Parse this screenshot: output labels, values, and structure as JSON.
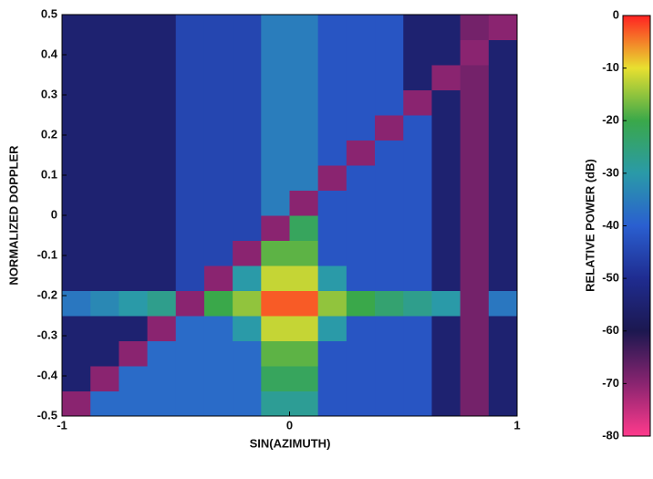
{
  "chart_data": {
    "type": "heatmap",
    "xlabel": "SIN(AZIMUTH)",
    "ylabel": "NORMALIZED DOPPLER",
    "zlabel": "RELATIVE POWER (dB)",
    "x": [
      -0.9375,
      -0.8125,
      -0.6875,
      -0.5625,
      -0.4375,
      -0.3125,
      -0.1875,
      -0.0625,
      0.0625,
      0.1875,
      0.3125,
      0.4375,
      0.5625,
      0.6875,
      0.8125,
      0.9375
    ],
    "y": [
      -0.46875,
      -0.40625,
      -0.34375,
      -0.28125,
      -0.21875,
      -0.15625,
      -0.09375,
      -0.03125,
      0.03125,
      0.09375,
      0.15625,
      0.21875,
      0.28125,
      0.34375,
      0.40625,
      0.46875
    ],
    "values": [
      [
        -70,
        -38,
        -38,
        -38,
        -38,
        -38,
        -38,
        -28,
        -28,
        -42,
        -42,
        -42,
        -42,
        -55,
        -68,
        -55
      ],
      [
        -55,
        -70,
        -38,
        -38,
        -38,
        -38,
        -38,
        -22,
        -22,
        -42,
        -42,
        -42,
        -42,
        -55,
        -68,
        -55
      ],
      [
        -55,
        -55,
        -70,
        -38,
        -38,
        -38,
        -38,
        -18,
        -18,
        -42,
        -42,
        -42,
        -42,
        -55,
        -68,
        -55
      ],
      [
        -55,
        -55,
        -55,
        -70,
        -38,
        -38,
        -30,
        -12,
        -12,
        -30,
        -42,
        -42,
        -42,
        -55,
        -68,
        -55
      ],
      [
        -36,
        -33,
        -30,
        -27,
        -70,
        -20,
        -15,
        -3,
        -3,
        -15,
        -20,
        -24,
        -27,
        -30,
        -68,
        -36
      ],
      [
        -55,
        -55,
        -55,
        -55,
        -45,
        -70,
        -30,
        -12,
        -12,
        -30,
        -42,
        -42,
        -42,
        -55,
        -68,
        -55
      ],
      [
        -55,
        -55,
        -55,
        -55,
        -45,
        -45,
        -70,
        -18,
        -18,
        -42,
        -42,
        -42,
        -42,
        -55,
        -68,
        -55
      ],
      [
        -55,
        -55,
        -55,
        -55,
        -45,
        -45,
        -45,
        -70,
        -22,
        -42,
        -42,
        -42,
        -42,
        -55,
        -68,
        -55
      ],
      [
        -55,
        -55,
        -55,
        -55,
        -45,
        -45,
        -45,
        -35,
        -70,
        -42,
        -42,
        -42,
        -42,
        -55,
        -68,
        -55
      ],
      [
        -55,
        -55,
        -55,
        -55,
        -45,
        -45,
        -45,
        -35,
        -35,
        -70,
        -42,
        -42,
        -42,
        -55,
        -68,
        -55
      ],
      [
        -55,
        -55,
        -55,
        -55,
        -45,
        -45,
        -45,
        -35,
        -35,
        -42,
        -70,
        -42,
        -42,
        -55,
        -68,
        -55
      ],
      [
        -55,
        -55,
        -55,
        -55,
        -45,
        -45,
        -45,
        -35,
        -35,
        -42,
        -42,
        -70,
        -42,
        -55,
        -68,
        -55
      ],
      [
        -55,
        -55,
        -55,
        -55,
        -45,
        -45,
        -45,
        -35,
        -35,
        -42,
        -42,
        -42,
        -70,
        -55,
        -68,
        -55
      ],
      [
        -55,
        -55,
        -55,
        -55,
        -45,
        -45,
        -45,
        -35,
        -35,
        -42,
        -42,
        -42,
        -55,
        -70,
        -68,
        -55
      ],
      [
        -55,
        -55,
        -55,
        -55,
        -45,
        -45,
        -45,
        -35,
        -35,
        -42,
        -42,
        -42,
        -55,
        -55,
        -70,
        -55
      ],
      [
        -55,
        -55,
        -55,
        -55,
        -45,
        -45,
        -45,
        -35,
        -35,
        -42,
        -42,
        -42,
        -55,
        -55,
        -68,
        -70
      ]
    ],
    "xlim": [
      -1,
      1
    ],
    "xticks": [
      -1,
      0,
      1
    ],
    "ylim": [
      -0.5,
      0.5
    ],
    "yticks": [
      -0.5,
      -0.4,
      -0.3,
      -0.2,
      -0.1,
      0,
      0.1,
      0.2,
      0.3,
      0.4,
      0.5
    ],
    "zlim": [
      -80,
      0
    ],
    "zticks": [
      0,
      -10,
      -20,
      -30,
      -40,
      -50,
      -60,
      -70,
      -80
    ],
    "colormap": [
      "#ff3a8c",
      "#8a2470",
      "#1c1850",
      "#1f2c90",
      "#2a5fd0",
      "#2a9aa8",
      "#3aa84a",
      "#e8e030",
      "#ff2222"
    ]
  }
}
